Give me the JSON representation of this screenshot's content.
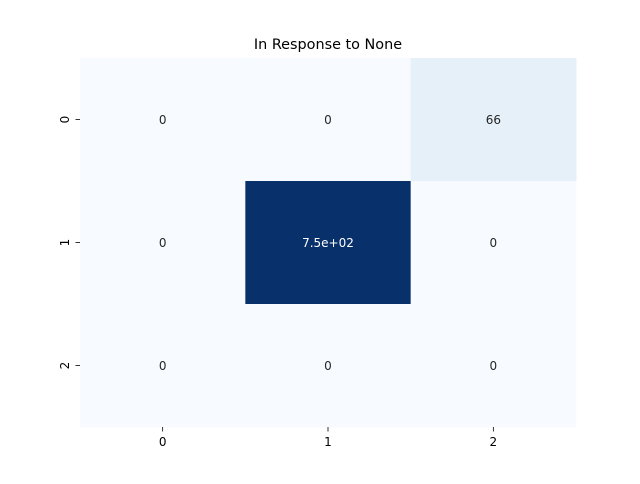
{
  "chart_data": {
    "type": "heatmap",
    "title": "In Response to None",
    "xlabel": "",
    "ylabel": "",
    "x_categories": [
      "0",
      "1",
      "2"
    ],
    "y_categories": [
      "0",
      "1",
      "2"
    ],
    "values": [
      [
        0,
        0,
        66
      ],
      [
        0,
        750,
        0
      ],
      [
        0,
        0,
        0
      ]
    ],
    "annotations": [
      [
        "0",
        "0",
        "66"
      ],
      [
        "0",
        "7.5e+02",
        "0"
      ],
      [
        "0",
        "0",
        "0"
      ]
    ],
    "value_range": [
      0,
      750
    ],
    "colormap": "Blues",
    "colormap_low": "#f7fbff",
    "colormap_high": "#08306b",
    "colorbar": false
  }
}
